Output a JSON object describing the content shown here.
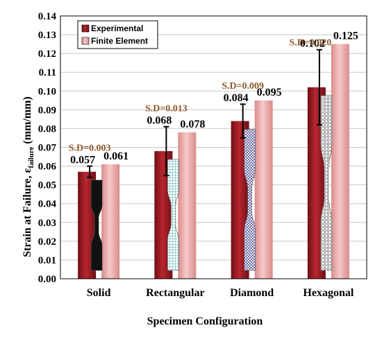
{
  "chart_data": {
    "type": "bar",
    "categories": [
      "Solid",
      "Rectangular",
      "Diamond",
      "Hexagonal"
    ],
    "series": [
      {
        "name": "Experimental",
        "values": [
          0.057,
          0.068,
          0.084,
          0.102
        ],
        "color": "#9b1b24",
        "error": [
          0.003,
          0.013,
          0.009,
          0.02
        ]
      },
      {
        "name": "Finite Element",
        "values": [
          0.061,
          0.078,
          0.095,
          0.125
        ],
        "color": "#e8a3a3"
      }
    ],
    "value_labels": {
      "experimental": [
        "0.057",
        "0.068",
        "0.084",
        "0.102"
      ],
      "finite_element": [
        "0.061",
        "0.078",
        "0.095",
        "0.125"
      ]
    },
    "sd_labels": [
      "S.D=0.003",
      "S.D=0.013",
      "S.D=0.009",
      "S.D=0.020"
    ],
    "ylabel": "Strain at Failure, ε",
    "ylabel_sub": "failure",
    "ylabel_unit": " (mm/mm)",
    "xlabel": "Specimen Configuration",
    "ylim": [
      0,
      0.14
    ],
    "yticks": [
      "0.00",
      "0.01",
      "0.02",
      "0.03",
      "0.04",
      "0.05",
      "0.06",
      "0.07",
      "0.08",
      "0.09",
      "0.10",
      "0.11",
      "0.12",
      "0.13",
      "0.14"
    ],
    "grid": true,
    "legend_position": "top-left"
  }
}
